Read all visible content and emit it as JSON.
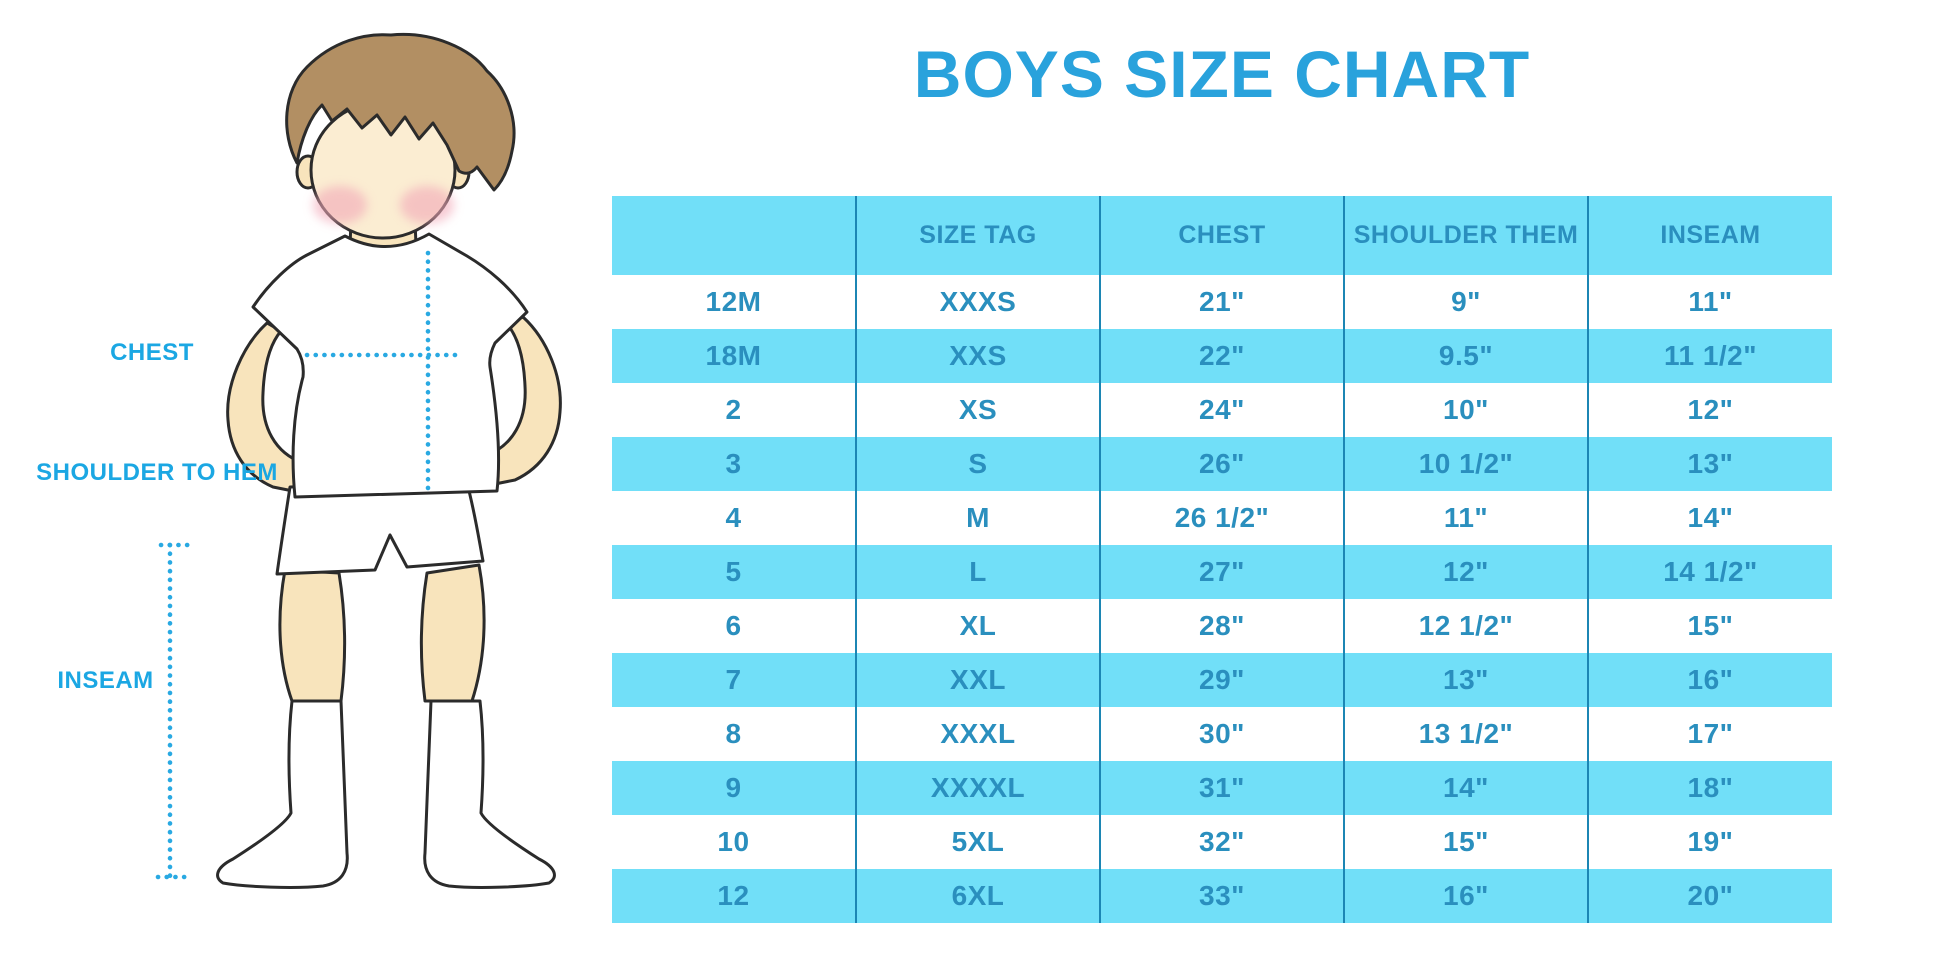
{
  "title": "BOYS SIZE CHART",
  "illustration": {
    "figure": "boy-front-standing",
    "labels": {
      "chest": "CHEST",
      "shoulder_to_hem": "SHOULDER TO HEM",
      "inseam": "INSEAM"
    },
    "colors": {
      "label_text": "#1BA7E3",
      "dotted_line": "#29A9E2",
      "hair": "#B28F63",
      "skin": "#F8E4BC",
      "face": "#FBEDD2",
      "blush": "#F2A8B8",
      "outline": "#2B2B2B",
      "clothes": "#FFFFFF"
    }
  },
  "chart_data": {
    "type": "table",
    "title": "BOYS SIZE CHART",
    "columns": [
      "",
      "SIZE TAG",
      "CHEST",
      "SHOULDER THEM",
      "INSEAM"
    ],
    "rows": [
      [
        "12M",
        "XXXS",
        "21\"",
        "9\"",
        "11\""
      ],
      [
        "18M",
        "XXS",
        "22\"",
        "9.5\"",
        "11 1/2\""
      ],
      [
        "2",
        "XS",
        "24\"",
        "10\"",
        "12\""
      ],
      [
        "3",
        "S",
        "26\"",
        "10 1/2\"",
        "13\""
      ],
      [
        "4",
        "M",
        "26 1/2\"",
        "11\"",
        "14\""
      ],
      [
        "5",
        "L",
        "27\"",
        "12\"",
        "14 1/2\""
      ],
      [
        "6",
        "XL",
        "28\"",
        "12 1/2\"",
        "15\""
      ],
      [
        "7",
        "XXL",
        "29\"",
        "13\"",
        "16\""
      ],
      [
        "8",
        "XXXL",
        "30\"",
        "13 1/2\"",
        "17\""
      ],
      [
        "9",
        "XXXXL",
        "31\"",
        "14\"",
        "18\""
      ],
      [
        "10",
        "5XL",
        "32\"",
        "15\"",
        "19\""
      ],
      [
        "12",
        "6XL",
        "33\"",
        "16\"",
        "20\""
      ]
    ],
    "style": {
      "band_color": "#71DFF8",
      "text_color": "#2A8FBE",
      "divider_color": "#1C86B4",
      "title_color": "#29A2DC",
      "row_striping": "alternating white and cyan, header cyan"
    }
  }
}
